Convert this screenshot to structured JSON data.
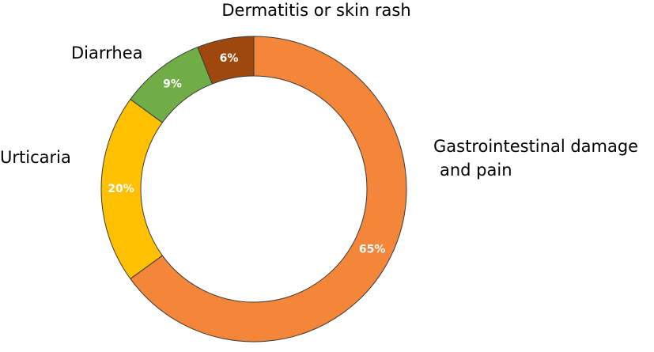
{
  "chart_data": {
    "type": "donut",
    "categories": [
      "Gastrointestinal damage\nand pain",
      "Urticaria",
      "Diarrhea",
      "Dermatitis or skin rash"
    ],
    "values": [
      65,
      20,
      9,
      6
    ],
    "value_labels": [
      "65%",
      "20%",
      "9%",
      "6%"
    ],
    "colors": [
      "#F4863A",
      "#FFC000",
      "#70AD47",
      "#9E480E"
    ]
  }
}
